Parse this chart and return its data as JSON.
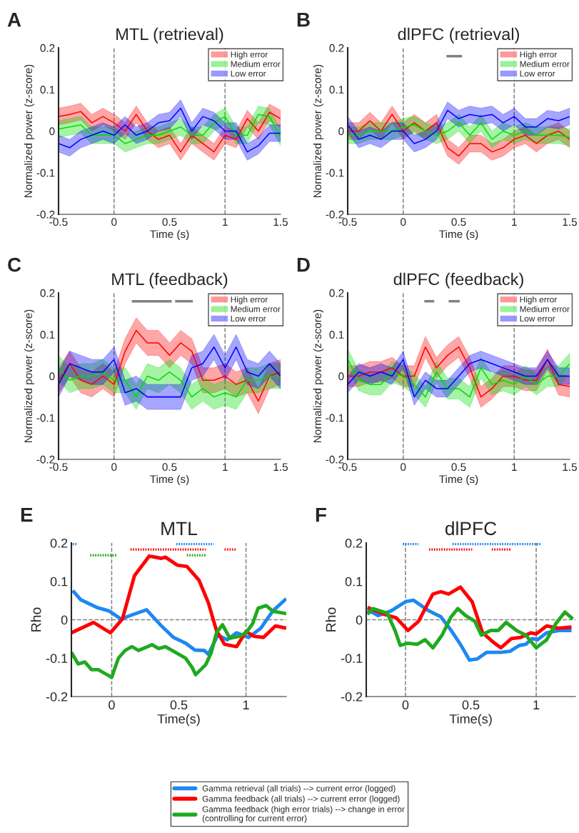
{
  "chart_data": [
    {
      "type": "line",
      "title": "MTL (retrieval)",
      "xlabel": "Time (s)",
      "ylabel": "Normalized power (z-score)",
      "annotations": [
        "A"
      ],
      "legend": "top right",
      "xlim": [
        -0.5,
        1.5
      ],
      "xticks": [
        -0.5,
        0,
        0.5,
        1,
        1.5
      ],
      "ylim": [
        -0.2,
        0.2
      ],
      "yticks": [
        -0.2,
        -0.1,
        0,
        0.1,
        0.2
      ],
      "ref_lines": [
        {
          "axis": "x",
          "value": 0,
          "color": "#808080",
          "line_style": "dashed"
        },
        {
          "axis": "x",
          "value": 1,
          "color": "#808080",
          "line_style": "dashed"
        }
      ],
      "x": [
        -0.5,
        -0.4,
        -0.3,
        -0.2,
        -0.1,
        0,
        0.1,
        0.2,
        0.3,
        0.4,
        0.5,
        0.6,
        0.7,
        0.8,
        0.9,
        1.0,
        1.1,
        1.2,
        1.3,
        1.4,
        1.5
      ],
      "series": [
        {
          "name": "High error",
          "color": "#ff0000",
          "values": [
            0.035,
            0.04,
            0.047,
            0.02,
            0.035,
            0.02,
            0.0,
            0.04,
            0.0,
            -0.02,
            -0.01,
            -0.05,
            -0.01,
            -0.03,
            -0.05,
            -0.01,
            -0.02,
            0.03,
            0.0,
            0.045,
            0.03
          ],
          "lower": [
            0.015,
            0.02,
            0.027,
            0.0,
            0.015,
            0.0,
            -0.02,
            0.02,
            -0.02,
            -0.04,
            -0.03,
            -0.07,
            -0.03,
            -0.05,
            -0.07,
            -0.03,
            -0.04,
            0.01,
            -0.02,
            0.025,
            0.01
          ],
          "upper": [
            0.055,
            0.06,
            0.067,
            0.04,
            0.055,
            0.04,
            0.02,
            0.06,
            0.02,
            0.0,
            0.01,
            -0.03,
            0.01,
            -0.01,
            -0.03,
            0.01,
            0.0,
            0.05,
            0.02,
            0.065,
            0.05
          ]
        },
        {
          "name": "Medium error",
          "color": "#00dd00",
          "values": [
            0.005,
            0.01,
            0.015,
            -0.01,
            -0.01,
            -0.01,
            -0.03,
            -0.02,
            -0.01,
            -0.01,
            0.0,
            0.01,
            -0.01,
            -0.01,
            0.02,
            0.035,
            -0.01,
            -0.01,
            0.04,
            0.035,
            -0.015
          ],
          "lower": [
            -0.015,
            -0.01,
            -0.005,
            -0.03,
            -0.03,
            -0.03,
            -0.05,
            -0.04,
            -0.03,
            -0.03,
            -0.02,
            -0.01,
            -0.03,
            -0.03,
            0.0,
            0.015,
            -0.03,
            -0.03,
            0.02,
            0.015,
            -0.035
          ],
          "upper": [
            0.025,
            0.03,
            0.035,
            0.01,
            0.01,
            0.01,
            -0.01,
            0.0,
            0.01,
            0.01,
            0.02,
            0.03,
            0.01,
            0.01,
            0.04,
            0.055,
            0.01,
            0.01,
            0.06,
            0.055,
            0.005
          ]
        },
        {
          "name": "Low error",
          "color": "#0000ff",
          "values": [
            -0.03,
            -0.04,
            -0.02,
            -0.01,
            0.0,
            -0.01,
            0.015,
            -0.01,
            0.0,
            0.02,
            0.025,
            0.055,
            0.0,
            0.035,
            0.025,
            0.0,
            0.0,
            -0.05,
            -0.035,
            -0.005,
            -0.005
          ],
          "lower": [
            -0.05,
            -0.06,
            -0.04,
            -0.03,
            -0.02,
            -0.03,
            -0.005,
            -0.03,
            -0.02,
            0.0,
            0.005,
            0.035,
            -0.02,
            0.015,
            0.005,
            -0.02,
            -0.02,
            -0.07,
            -0.055,
            -0.025,
            -0.025
          ],
          "upper": [
            -0.01,
            -0.02,
            0.0,
            0.01,
            0.02,
            0.01,
            0.035,
            0.01,
            0.02,
            0.04,
            0.045,
            0.075,
            0.02,
            0.055,
            0.045,
            0.02,
            0.02,
            -0.03,
            -0.015,
            0.015,
            0.015
          ]
        }
      ]
    },
    {
      "type": "line",
      "title": "dlPFC (retrieval)",
      "xlabel": "Time (s)",
      "ylabel": "Normalized power (z-score)",
      "annotations": [
        "B"
      ],
      "legend": "top right",
      "xlim": [
        -0.5,
        1.5
      ],
      "xticks": [
        -0.5,
        0,
        0.5,
        1,
        1.5
      ],
      "ylim": [
        -0.2,
        0.2
      ],
      "yticks": [
        -0.2,
        -0.1,
        0,
        0.1,
        0.2
      ],
      "ref_lines": [
        {
          "axis": "x",
          "value": 0,
          "color": "#808080",
          "line_style": "dashed"
        },
        {
          "axis": "x",
          "value": 1,
          "color": "#808080",
          "line_style": "dashed"
        }
      ],
      "x": [
        -0.5,
        -0.4,
        -0.3,
        -0.2,
        -0.1,
        0,
        0.1,
        0.2,
        0.3,
        0.4,
        0.5,
        0.6,
        0.7,
        0.8,
        0.9,
        1.0,
        1.1,
        1.2,
        1.3,
        1.4,
        1.5
      ],
      "series": [
        {
          "name": "High error",
          "color": "#ff0000",
          "values": [
            0.0,
            0.0,
            0.025,
            0.0,
            0.04,
            0.0,
            0.02,
            0.0,
            0.02,
            -0.04,
            -0.06,
            -0.03,
            -0.03,
            -0.05,
            -0.04,
            -0.02,
            -0.01,
            -0.03,
            -0.01,
            0.0,
            -0.02
          ],
          "lower": [
            -0.02,
            -0.02,
            0.005,
            -0.02,
            0.02,
            -0.02,
            0.0,
            -0.02,
            0.0,
            -0.06,
            -0.08,
            -0.05,
            -0.05,
            -0.07,
            -0.06,
            -0.04,
            -0.03,
            -0.05,
            -0.03,
            -0.02,
            -0.04
          ],
          "upper": [
            0.02,
            0.02,
            0.045,
            0.02,
            0.06,
            0.02,
            0.04,
            0.02,
            0.04,
            -0.02,
            -0.04,
            -0.01,
            -0.01,
            -0.03,
            -0.02,
            0.0,
            0.01,
            -0.01,
            0.01,
            0.02,
            0.0
          ]
        },
        {
          "name": "Medium error",
          "color": "#00dd00",
          "values": [
            -0.01,
            -0.01,
            0.0,
            0.0,
            0.0,
            0.01,
            0.015,
            0.0,
            -0.01,
            0.0,
            0.02,
            -0.01,
            0.02,
            -0.02,
            0.0,
            -0.01,
            0.0,
            -0.01,
            -0.01,
            -0.01,
            -0.015
          ],
          "lower": [
            -0.03,
            -0.03,
            -0.02,
            -0.02,
            -0.02,
            -0.01,
            -0.005,
            -0.02,
            -0.03,
            -0.02,
            0.0,
            -0.03,
            0.0,
            -0.04,
            -0.02,
            -0.03,
            -0.02,
            -0.03,
            -0.03,
            -0.03,
            -0.035
          ],
          "upper": [
            0.01,
            0.01,
            0.02,
            0.02,
            0.02,
            0.03,
            0.035,
            0.02,
            0.01,
            0.02,
            0.04,
            0.01,
            0.04,
            0.0,
            0.02,
            0.01,
            0.02,
            0.01,
            0.01,
            0.01,
            0.005
          ]
        },
        {
          "name": "Low error",
          "color": "#0000ff",
          "values": [
            0.015,
            -0.02,
            -0.01,
            -0.02,
            0.0,
            0.0,
            -0.03,
            -0.02,
            0.0,
            0.05,
            0.03,
            0.04,
            0.035,
            0.04,
            0.02,
            0.035,
            0.01,
            0.01,
            0.03,
            0.025,
            0.035
          ],
          "lower": [
            -0.005,
            -0.04,
            -0.03,
            -0.04,
            -0.02,
            -0.02,
            -0.05,
            -0.04,
            -0.02,
            0.03,
            0.01,
            0.02,
            0.015,
            0.02,
            0.0,
            0.015,
            -0.01,
            -0.01,
            0.01,
            0.005,
            0.015
          ],
          "upper": [
            0.035,
            0.0,
            0.01,
            0.0,
            0.02,
            0.02,
            -0.01,
            0.0,
            0.02,
            0.07,
            0.05,
            0.06,
            0.055,
            0.06,
            0.04,
            0.055,
            0.03,
            0.03,
            0.05,
            0.045,
            0.055
          ]
        },
        {
          "type": "line",
          "color": "#808080",
          "x": [
            0.39,
            0.53
          ],
          "values": [
            0.18,
            0.18
          ]
        }
      ]
    },
    {
      "type": "line",
      "title": "MTL (feedback)",
      "xlabel": "Time (s)",
      "ylabel": "Normalized power (z-score)",
      "annotations": [
        "C"
      ],
      "legend": "top right",
      "xlim": [
        -0.5,
        1.5
      ],
      "xticks": [
        -0.5,
        0,
        0.5,
        1,
        1.5
      ],
      "ylim": [
        -0.2,
        0.2
      ],
      "yticks": [
        -0.2,
        -0.1,
        0,
        0.1,
        0.2
      ],
      "ref_lines": [
        {
          "axis": "x",
          "value": 0,
          "color": "#808080",
          "line_style": "dashed"
        },
        {
          "axis": "x",
          "value": 1,
          "color": "#808080",
          "line_style": "dashed"
        }
      ],
      "x": [
        -0.5,
        -0.4,
        -0.3,
        -0.2,
        -0.1,
        0,
        0.1,
        0.2,
        0.3,
        0.4,
        0.5,
        0.6,
        0.7,
        0.8,
        0.9,
        1.0,
        1.1,
        1.2,
        1.3,
        1.4,
        1.5
      ],
      "series": [
        {
          "name": "High error",
          "color": "#ff0000",
          "values": [
            -0.01,
            0.03,
            -0.01,
            -0.02,
            0.0,
            -0.02,
            0.06,
            0.11,
            0.08,
            0.08,
            0.05,
            0.08,
            0.06,
            -0.01,
            -0.01,
            0.0,
            -0.02,
            -0.01,
            -0.06,
            0.0,
            0.01
          ],
          "lower": [
            -0.04,
            0.0,
            -0.04,
            -0.05,
            -0.03,
            -0.05,
            0.03,
            0.08,
            0.05,
            0.05,
            0.02,
            0.05,
            0.03,
            -0.04,
            -0.04,
            -0.03,
            -0.05,
            -0.04,
            -0.09,
            -0.03,
            -0.02
          ],
          "upper": [
            0.02,
            0.06,
            0.02,
            0.01,
            0.03,
            0.01,
            0.09,
            0.14,
            0.11,
            0.11,
            0.08,
            0.11,
            0.09,
            0.02,
            0.02,
            0.03,
            0.01,
            0.02,
            -0.03,
            0.03,
            0.04
          ]
        },
        {
          "name": "Medium error",
          "color": "#00dd00",
          "values": [
            0.02,
            -0.01,
            0.0,
            0.0,
            0.01,
            -0.01,
            -0.01,
            -0.05,
            0.0,
            -0.01,
            0.01,
            -0.01,
            -0.05,
            -0.03,
            -0.05,
            -0.04,
            -0.05,
            -0.01,
            -0.01,
            0.0,
            0.0
          ],
          "lower": [
            -0.01,
            -0.04,
            -0.03,
            -0.03,
            -0.02,
            -0.04,
            -0.04,
            -0.08,
            -0.03,
            -0.04,
            -0.02,
            -0.04,
            -0.08,
            -0.06,
            -0.08,
            -0.07,
            -0.08,
            -0.04,
            -0.04,
            -0.03,
            -0.03
          ],
          "upper": [
            0.05,
            0.02,
            0.03,
            0.03,
            0.04,
            0.02,
            0.02,
            -0.02,
            0.03,
            0.02,
            0.04,
            0.02,
            -0.02,
            0.0,
            -0.02,
            -0.01,
            -0.02,
            0.02,
            0.02,
            0.03,
            0.03
          ]
        },
        {
          "name": "Low error",
          "color": "#0000ff",
          "values": [
            -0.02,
            0.03,
            0.02,
            0.01,
            0.01,
            0.04,
            -0.04,
            -0.03,
            -0.05,
            -0.05,
            -0.05,
            -0.05,
            0.02,
            0.03,
            0.07,
            0.02,
            0.07,
            0.01,
            0.0,
            0.03,
            0.0
          ],
          "lower": [
            -0.05,
            0.0,
            -0.01,
            -0.02,
            -0.02,
            0.01,
            -0.07,
            -0.06,
            -0.08,
            -0.08,
            -0.08,
            -0.08,
            -0.01,
            0.0,
            0.04,
            -0.01,
            0.04,
            -0.02,
            -0.03,
            0.0,
            -0.03
          ],
          "upper": [
            0.01,
            0.06,
            0.05,
            0.04,
            0.04,
            0.07,
            -0.01,
            0.0,
            -0.02,
            -0.02,
            -0.02,
            -0.02,
            0.05,
            0.06,
            0.1,
            0.05,
            0.1,
            0.04,
            0.03,
            0.06,
            0.03
          ]
        },
        {
          "type": "line",
          "color": "#808080",
          "x": [
            0.16,
            0.52
          ],
          "values": [
            0.18,
            0.18
          ]
        },
        {
          "type": "line",
          "color": "#808080",
          "x": [
            0.55,
            0.71
          ],
          "values": [
            0.18,
            0.18
          ]
        }
      ]
    },
    {
      "type": "line",
      "title": "dlPFC (feedback)",
      "xlabel": "Time (s)",
      "ylabel": "Normalized power (z-score)",
      "annotations": [
        "D"
      ],
      "legend": "top right",
      "xlim": [
        -0.5,
        1.5
      ],
      "xticks": [
        -0.5,
        0,
        0.5,
        1,
        1.5
      ],
      "ylim": [
        -0.2,
        0.2
      ],
      "yticks": [
        -0.2,
        -0.1,
        0,
        0.1,
        0.2
      ],
      "ref_lines": [
        {
          "axis": "x",
          "value": 0,
          "color": "#808080",
          "line_style": "dashed"
        },
        {
          "axis": "x",
          "value": 1,
          "color": "#808080",
          "line_style": "dashed"
        }
      ],
      "x": [
        -0.5,
        -0.4,
        -0.3,
        -0.2,
        -0.1,
        0,
        0.1,
        0.2,
        0.3,
        0.4,
        0.5,
        0.6,
        0.7,
        0.8,
        0.9,
        1.0,
        1.1,
        1.2,
        1.3,
        1.4,
        1.5
      ],
      "series": [
        {
          "name": "High error",
          "color": "#ff0000",
          "values": [
            0.0,
            0.0,
            0.01,
            0.01,
            0.02,
            0.0,
            0.0,
            0.07,
            0.02,
            0.05,
            0.07,
            0.02,
            -0.05,
            -0.03,
            0.0,
            0.0,
            -0.01,
            -0.01,
            0.04,
            -0.02,
            -0.025
          ],
          "lower": [
            -0.025,
            -0.025,
            -0.015,
            -0.015,
            -0.005,
            -0.025,
            -0.025,
            0.045,
            -0.005,
            0.025,
            0.045,
            -0.005,
            -0.075,
            -0.055,
            -0.025,
            -0.025,
            -0.035,
            -0.035,
            0.015,
            -0.045,
            -0.05
          ],
          "upper": [
            0.025,
            0.025,
            0.035,
            0.035,
            0.045,
            0.025,
            0.025,
            0.095,
            0.045,
            0.075,
            0.095,
            0.045,
            -0.025,
            -0.005,
            0.025,
            0.025,
            0.015,
            0.015,
            0.065,
            0.005,
            0.0
          ]
        },
        {
          "name": "Medium error",
          "color": "#00dd00",
          "values": [
            0.04,
            -0.01,
            -0.02,
            -0.02,
            0.01,
            0.0,
            -0.02,
            -0.05,
            0.01,
            -0.03,
            -0.03,
            -0.05,
            0.02,
            -0.02,
            -0.01,
            -0.02,
            0.0,
            -0.02,
            0.0,
            0.0,
            0.03
          ],
          "lower": [
            0.015,
            -0.035,
            -0.045,
            -0.045,
            -0.015,
            -0.025,
            -0.045,
            -0.075,
            -0.015,
            -0.055,
            -0.055,
            -0.075,
            -0.005,
            -0.045,
            -0.035,
            -0.045,
            -0.025,
            -0.045,
            -0.025,
            -0.025,
            0.005
          ],
          "upper": [
            0.065,
            0.015,
            0.005,
            0.005,
            0.035,
            0.025,
            0.005,
            -0.025,
            0.035,
            -0.005,
            -0.005,
            -0.025,
            0.045,
            0.005,
            0.015,
            0.005,
            0.025,
            0.005,
            0.025,
            0.025,
            0.055
          ]
        },
        {
          "name": "Low error",
          "color": "#0000ff",
          "values": [
            -0.02,
            0.01,
            0.0,
            0.01,
            0.0,
            0.04,
            -0.05,
            -0.01,
            -0.03,
            -0.03,
            0.0,
            0.03,
            0.04,
            0.03,
            0.02,
            0.01,
            0.0,
            0.0,
            0.04,
            0.0,
            0.0
          ],
          "lower": [
            -0.04,
            -0.01,
            -0.02,
            -0.01,
            -0.02,
            0.02,
            -0.07,
            -0.03,
            -0.05,
            -0.05,
            -0.02,
            0.01,
            0.02,
            0.01,
            0.0,
            -0.01,
            -0.02,
            -0.02,
            0.02,
            -0.02,
            -0.02
          ],
          "upper": [
            0.0,
            0.03,
            0.02,
            0.03,
            0.02,
            0.06,
            -0.03,
            0.01,
            -0.01,
            -0.01,
            0.02,
            0.05,
            0.06,
            0.05,
            0.04,
            0.03,
            0.02,
            0.02,
            0.06,
            0.02,
            0.02
          ]
        },
        {
          "type": "line",
          "color": "#808080",
          "x": [
            0.19,
            0.28
          ],
          "values": [
            0.18,
            0.18
          ]
        },
        {
          "type": "line",
          "color": "#808080",
          "x": [
            0.41,
            0.51
          ],
          "values": [
            0.18,
            0.18
          ]
        }
      ]
    },
    {
      "type": "line",
      "title": "MTL",
      "xlabel": "Time(s)",
      "ylabel": "Rho",
      "annotations": [
        "E"
      ],
      "legend": "bottom",
      "xlim": [
        -0.3,
        1.3
      ],
      "xticks": [
        0,
        0.5,
        1
      ],
      "ylim": [
        -0.2,
        0.2
      ],
      "yticks": [
        -0.2,
        -0.1,
        0,
        0.1,
        0.2
      ],
      "ref_lines": [
        {
          "axis": "x",
          "value": 0,
          "color": "#808080",
          "line_style": "dashed"
        },
        {
          "axis": "x",
          "value": 1,
          "color": "#808080",
          "line_style": "dashed"
        },
        {
          "axis": "y",
          "value": 0,
          "color": "#808080",
          "line_style": "dashed"
        }
      ],
      "series": [
        {
          "name": "Gamma retrieval (all trials) --> current error (logged)",
          "color": "#1e88f0",
          "x": [
            -0.29,
            -0.23,
            -0.11,
            -0.02,
            0.07,
            0.14,
            0.26,
            0.37,
            0.46,
            0.55,
            0.62,
            0.69,
            0.72,
            0.79,
            0.86,
            0.93,
            1.02,
            1.11,
            1.2,
            1.3
          ],
          "values": [
            0.076,
            0.052,
            0.032,
            0.023,
            0.002,
            0.011,
            0.026,
            -0.016,
            -0.046,
            -0.061,
            -0.079,
            -0.08,
            -0.09,
            -0.04,
            -0.052,
            -0.034,
            -0.046,
            -0.022,
            0.023,
            0.055
          ]
        },
        {
          "name": "Gamma feedback (all trials) --> current error (logged)",
          "color": "#ff0000",
          "x": [
            -0.3,
            -0.135,
            -0.01,
            0.08,
            0.17,
            0.28,
            0.37,
            0.4,
            0.49,
            0.56,
            0.65,
            0.72,
            0.78,
            0.84,
            0.93,
            1.0,
            1.06,
            1.13,
            1.22,
            1.3
          ],
          "values": [
            -0.034,
            -0.007,
            -0.034,
            0.002,
            0.115,
            0.166,
            0.16,
            0.163,
            0.142,
            0.139,
            0.103,
            0.044,
            -0.028,
            -0.064,
            -0.07,
            -0.031,
            -0.043,
            -0.046,
            -0.016,
            -0.022
          ]
        },
        {
          "name": "Gamma feedback (high error trials) --> change in error\n(controlling for current error)",
          "color": "#1faa1f",
          "x": [
            -0.3,
            -0.25,
            -0.2,
            -0.15,
            -0.1,
            -0.05,
            0.0,
            0.05,
            0.1,
            0.15,
            0.2,
            0.3,
            0.35,
            0.4,
            0.5,
            0.55,
            0.6,
            0.625,
            0.7,
            0.74,
            0.78,
            0.825,
            0.88,
            0.95,
            1.0,
            1.05,
            1.09,
            1.15,
            1.2,
            1.3
          ],
          "values": [
            -0.085,
            -0.115,
            -0.11,
            -0.13,
            -0.13,
            -0.14,
            -0.15,
            -0.1,
            -0.08,
            -0.07,
            -0.08,
            -0.065,
            -0.075,
            -0.07,
            -0.09,
            -0.1,
            -0.125,
            -0.143,
            -0.117,
            -0.087,
            -0.034,
            -0.013,
            -0.048,
            -0.043,
            -0.034,
            -0.01,
            0.03,
            0.037,
            0.022,
            0.016
          ]
        },
        {
          "type": "line",
          "line_style": "dotted",
          "color": "#1e88f0",
          "x": [
            -0.29,
            -0.26
          ],
          "values": [
            0.197,
            0.197
          ]
        },
        {
          "type": "line",
          "line_style": "dotted",
          "color": "#1e88f0",
          "x": [
            0.48,
            0.76
          ],
          "values": [
            0.197,
            0.197
          ]
        },
        {
          "type": "line",
          "line_style": "dotted",
          "color": "#ff0000",
          "x": [
            0.14,
            0.7
          ],
          "values": [
            0.183,
            0.183
          ]
        },
        {
          "type": "line",
          "line_style": "dotted",
          "color": "#ff0000",
          "x": [
            0.84,
            0.93
          ],
          "values": [
            0.183,
            0.183
          ]
        },
        {
          "type": "line",
          "line_style": "dotted",
          "color": "#1faa1f",
          "x": [
            -0.16,
            0.035
          ],
          "values": [
            0.168,
            0.168
          ]
        },
        {
          "type": "line",
          "line_style": "dotted",
          "color": "#1faa1f",
          "x": [
            0.56,
            0.7
          ],
          "values": [
            0.168,
            0.168
          ]
        }
      ]
    },
    {
      "type": "line",
      "title": "dlPFC",
      "xlabel": "Time(s)",
      "ylabel": "Rho",
      "annotations": [
        "F"
      ],
      "xlim": [
        -0.3,
        1.3
      ],
      "xticks": [
        0,
        0.5,
        1
      ],
      "ylim": [
        -0.2,
        0.2
      ],
      "yticks": [
        -0.2,
        -0.1,
        0,
        0.1,
        0.2
      ],
      "ref_lines": [
        {
          "axis": "x",
          "value": 0,
          "color": "#808080",
          "line_style": "dashed"
        },
        {
          "axis": "x",
          "value": 1,
          "color": "#808080",
          "line_style": "dashed"
        },
        {
          "axis": "y",
          "value": 0,
          "color": "#808080",
          "line_style": "dashed"
        }
      ],
      "series": [
        {
          "color": "#1e88f0",
          "x": [
            -0.29,
            -0.21,
            -0.11,
            0.0,
            0.06,
            0.18,
            0.27,
            0.35,
            0.42,
            0.49,
            0.55,
            0.62,
            0.73,
            0.8,
            0.87,
            0.92,
            0.97,
            1.01,
            1.08,
            1.17,
            1.27
          ],
          "values": [
            0.026,
            0.011,
            0.023,
            0.047,
            0.051,
            0.023,
            0.008,
            -0.028,
            -0.064,
            -0.105,
            -0.102,
            -0.085,
            -0.085,
            -0.082,
            -0.067,
            -0.064,
            -0.049,
            -0.052,
            -0.034,
            -0.028,
            -0.028
          ]
        },
        {
          "color": "#ff0000",
          "x": [
            -0.29,
            -0.16,
            -0.07,
            0.02,
            0.1,
            0.21,
            0.27,
            0.33,
            0.42,
            0.51,
            0.59,
            0.67,
            0.73,
            0.81,
            0.88,
            0.96,
            1.0,
            1.08,
            1.17,
            1.27
          ],
          "values": [
            0.032,
            0.014,
            0.005,
            -0.028,
            -0.004,
            0.067,
            0.073,
            0.067,
            0.085,
            0.047,
            -0.034,
            -0.058,
            -0.073,
            -0.049,
            -0.046,
            -0.034,
            -0.037,
            -0.016,
            -0.022,
            -0.019
          ]
        },
        {
          "color": "#1faa1f",
          "x": [
            -0.29,
            -0.25,
            -0.14,
            -0.08,
            -0.04,
            0.02,
            0.09,
            0.15,
            0.21,
            0.28,
            0.35,
            0.4,
            0.46,
            0.53,
            0.58,
            0.65,
            0.71,
            0.77,
            0.85,
            0.92,
            1.0,
            1.08,
            1.15,
            1.22,
            1.28
          ],
          "values": [
            0.014,
            0.029,
            0.017,
            -0.028,
            -0.067,
            -0.061,
            -0.064,
            -0.052,
            -0.073,
            -0.04,
            0.008,
            0.029,
            0.011,
            -0.004,
            -0.04,
            -0.028,
            -0.028,
            -0.007,
            -0.028,
            -0.04,
            -0.073,
            -0.052,
            -0.01,
            0.02,
            0.002
          ]
        },
        {
          "type": "line",
          "line_style": "dotted",
          "color": "#1e88f0",
          "x": [
            -0.02,
            0.1
          ],
          "values": [
            0.197,
            0.197
          ]
        },
        {
          "type": "line",
          "line_style": "dotted",
          "color": "#1e88f0",
          "x": [
            0.36,
            1.04
          ],
          "values": [
            0.197,
            0.197
          ]
        },
        {
          "type": "line",
          "line_style": "dotted",
          "color": "#ff0000",
          "x": [
            0.18,
            0.51
          ],
          "values": [
            0.183,
            0.183
          ]
        },
        {
          "type": "line",
          "line_style": "dotted",
          "color": "#ff0000",
          "x": [
            0.66,
            0.81
          ],
          "values": [
            0.183,
            0.183
          ]
        }
      ]
    }
  ]
}
